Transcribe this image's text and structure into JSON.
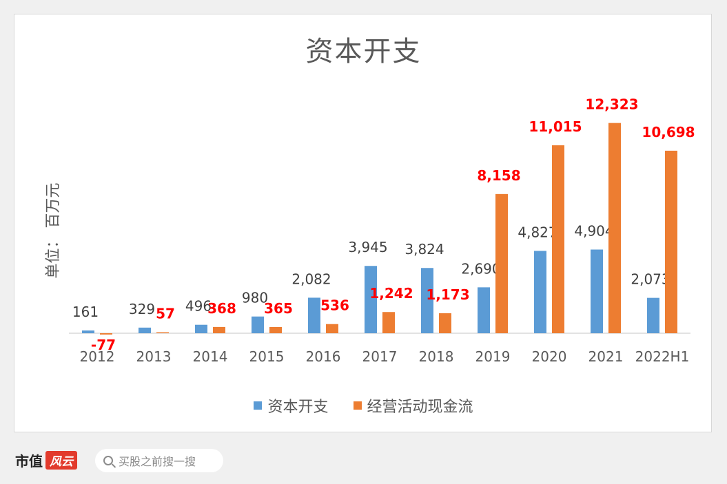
{
  "chart_data": {
    "type": "bar",
    "title": "资本开支",
    "ylabel": "单位： 百万元",
    "xlabel": "",
    "categories": [
      "2012",
      "2013",
      "2014",
      "2015",
      "2016",
      "2017",
      "2018",
      "2019",
      "2020",
      "2021",
      "2022H1"
    ],
    "series": [
      {
        "name": "资本开支",
        "color": "#5b9bd5",
        "label_color": "#404040",
        "values": [
          161,
          329,
          496,
          980,
          2082,
          3945,
          3824,
          2690,
          4827,
          4904,
          2073
        ],
        "labels": [
          "161",
          "329",
          "496",
          "980",
          "2,082",
          "3,945",
          "3,824",
          "2,690",
          "4,827",
          "4,904",
          "2,073"
        ]
      },
      {
        "name": "经营活动现金流",
        "color": "#ed7d31",
        "label_color": "#ff0000",
        "values": [
          -77,
          57,
          368,
          365,
          536,
          1242,
          1173,
          8158,
          11015,
          12323,
          10698
        ],
        "labels": [
          "-77",
          "57",
          "368",
          "365",
          "536",
          "1,242",
          "1,173",
          "8,158",
          "11,015",
          "12,323",
          "10,698"
        ]
      }
    ],
    "ylim": [
      -300,
      13500
    ],
    "grid": false,
    "legend_position": "bottom"
  },
  "footer": {
    "brand": "市值",
    "brand_mark": "风云",
    "search_placeholder": "买股之前搜一搜"
  }
}
